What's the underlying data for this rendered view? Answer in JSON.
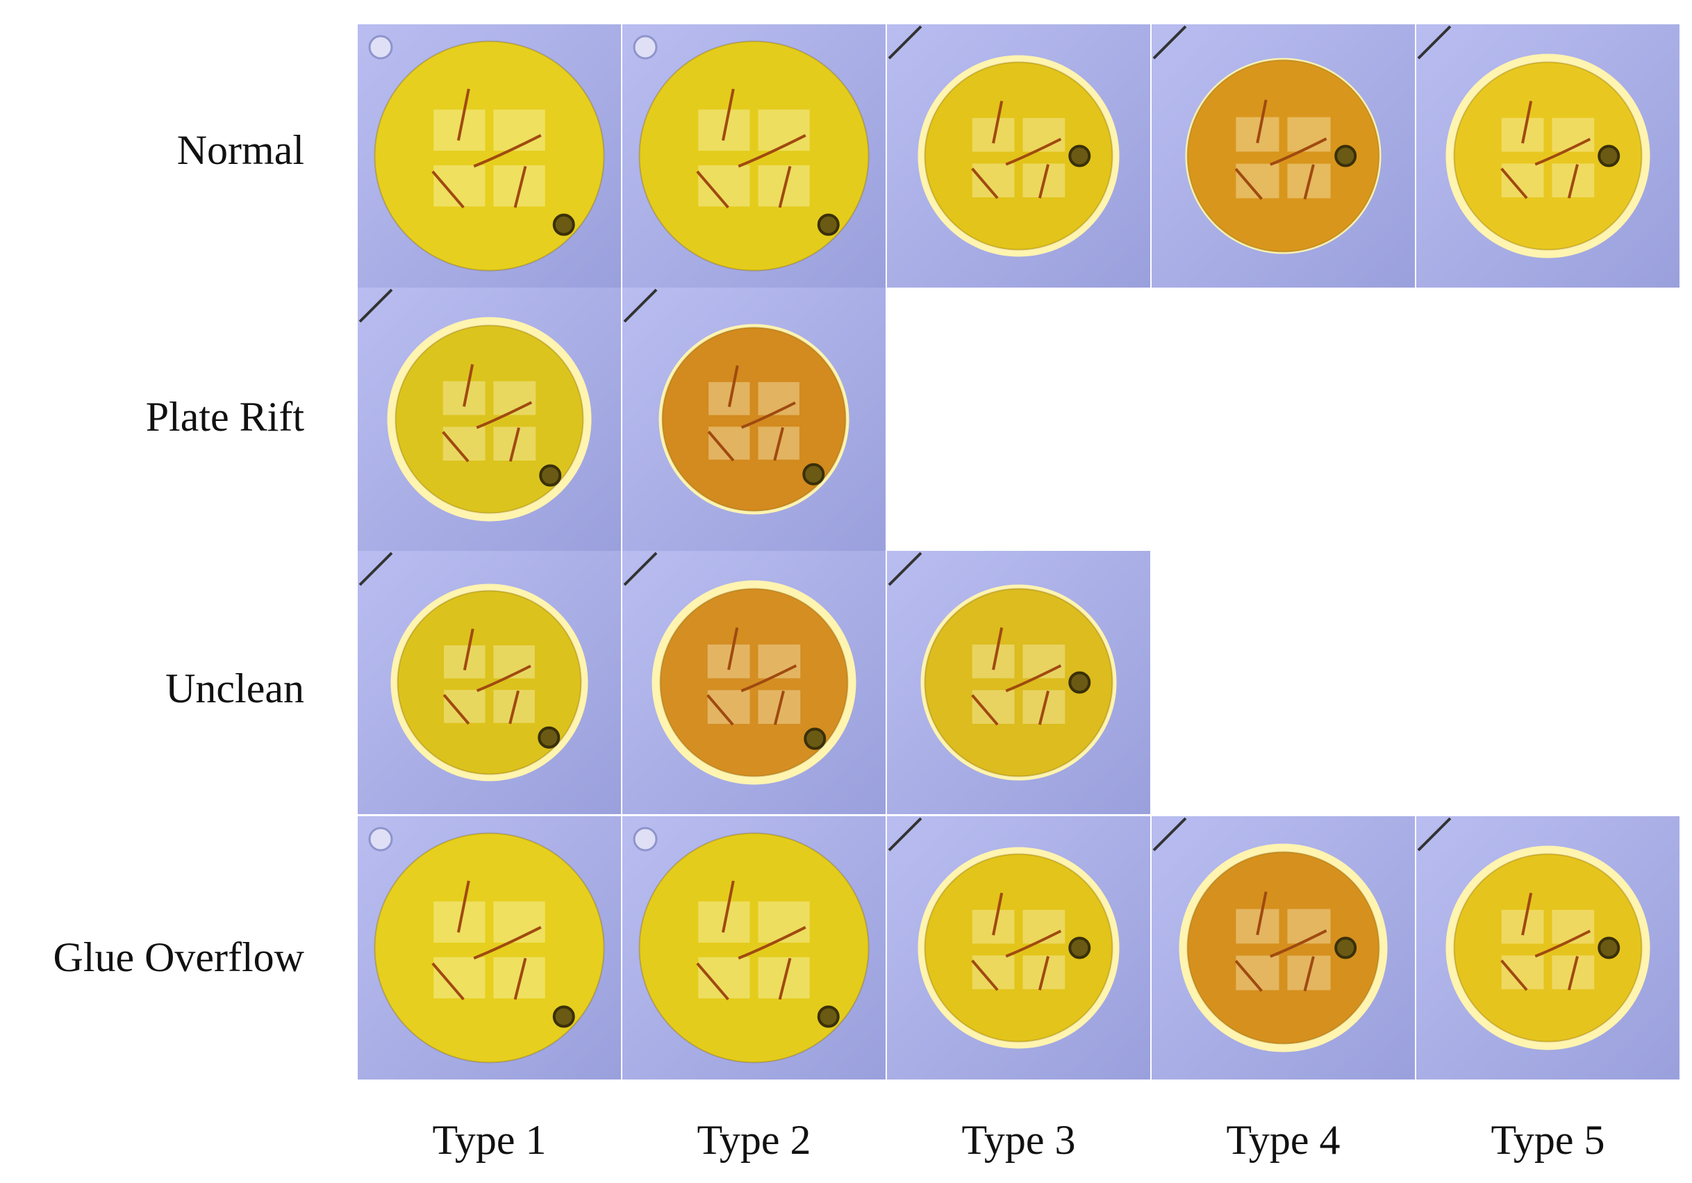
{
  "rows": [
    "Normal",
    "Plate Rift",
    "Unclean",
    "Glue Overflow"
  ],
  "columns": [
    "Type 1",
    "Type 2",
    "Type 3",
    "Type 4",
    "Type 5"
  ]
}
